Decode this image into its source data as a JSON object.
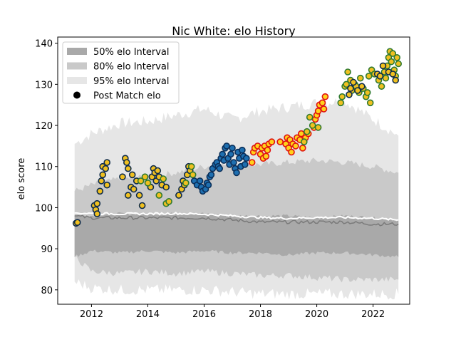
{
  "chart_data": {
    "type": "scatter",
    "title": "Nic White: elo History",
    "xlabel": "",
    "ylabel": "elo score",
    "xlim": [
      2010.8,
      2023.3
    ],
    "ylim": [
      76.5,
      141.5
    ],
    "xticks": [
      2012,
      2014,
      2016,
      2018,
      2020,
      2022
    ],
    "yticks": [
      80,
      90,
      100,
      110,
      120,
      130,
      140
    ],
    "grid": false,
    "legend_position": "top-left",
    "legend": [
      {
        "label": "50% elo Interval",
        "kind": "band50"
      },
      {
        "label": "80% elo Interval",
        "kind": "band80"
      },
      {
        "label": "95% elo Interval",
        "kind": "band95"
      },
      {
        "label": "Post Match elo",
        "kind": "marker"
      }
    ],
    "colors": {
      "band50": "#a9a9a9",
      "band80": "#c9c9c9",
      "band95": "#e6e6e6",
      "median_line": "#7a7a7a",
      "mean_line": "#ffffff",
      "marker_gold": "#f0c020",
      "marker_blue": "#1e6fb0",
      "marker_yellow": "#ffd21a",
      "edge_navy": "#0d2a4a",
      "edge_green": "#2f7a2f",
      "edge_red": "#e01010",
      "edge_blue": "#0a2f5a"
    },
    "bands": {
      "x": [
        2011.4,
        2012.0,
        2013.0,
        2014.0,
        2015.0,
        2016.0,
        2017.0,
        2018.0,
        2019.0,
        2020.0,
        2021.0,
        2022.0,
        2022.9
      ],
      "p95_hi": [
        115.5,
        118.0,
        120.5,
        121.0,
        122.5,
        124.0,
        121.5,
        123.5,
        124.5,
        125.5,
        126.0,
        121.5,
        117.5
      ],
      "p80_hi": [
        104.0,
        105.5,
        107.0,
        107.5,
        108.5,
        110.0,
        110.5,
        110.5,
        111.0,
        111.5,
        111.0,
        110.0,
        108.5
      ],
      "p50_hi": [
        98.0,
        98.0,
        98.5,
        98.5,
        98.5,
        98.5,
        98.0,
        98.0,
        98.0,
        97.5,
        98.0,
        97.5,
        97.0
      ],
      "median": [
        98.0,
        97.5,
        97.5,
        97.5,
        97.5,
        97.5,
        97.0,
        96.5,
        96.5,
        96.5,
        96.5,
        96.0,
        96.0
      ],
      "p50_lo": [
        88.0,
        89.5,
        89.0,
        89.5,
        89.0,
        89.5,
        89.0,
        89.0,
        88.5,
        89.0,
        89.0,
        88.5,
        88.0
      ],
      "p80_lo": [
        88.0,
        84.5,
        84.0,
        84.5,
        84.0,
        84.5,
        84.0,
        83.5,
        83.5,
        83.0,
        82.5,
        82.5,
        82.5
      ],
      "p95_lo": [
        82.0,
        80.5,
        80.0,
        80.0,
        80.0,
        80.0,
        79.5,
        79.0,
        79.0,
        79.0,
        79.0,
        79.0,
        79.0
      ],
      "mean": [
        98.7,
        98.6,
        98.5,
        98.5,
        98.6,
        98.4,
        98.0,
        97.6,
        97.4,
        97.6,
        97.6,
        97.4,
        97.0
      ]
    },
    "series": [
      {
        "group": "A",
        "edge": "navy",
        "fill": "gold",
        "points": [
          [
            2011.45,
            96.2
          ],
          [
            2011.5,
            96.4
          ],
          [
            2012.1,
            100.5
          ],
          [
            2012.15,
            99.5
          ],
          [
            2012.2,
            101.0
          ],
          [
            2012.2,
            98.5
          ],
          [
            2012.3,
            104.0
          ],
          [
            2012.35,
            106.5
          ],
          [
            2012.4,
            108.0
          ],
          [
            2012.4,
            110.0
          ],
          [
            2012.5,
            109.5
          ],
          [
            2012.55,
            111.0
          ],
          [
            2012.55,
            105.5
          ],
          [
            2013.1,
            107.5
          ],
          [
            2013.2,
            112.0
          ],
          [
            2013.25,
            111.0
          ],
          [
            2013.3,
            109.5
          ],
          [
            2013.3,
            103.0
          ],
          [
            2013.4,
            105.0
          ],
          [
            2013.45,
            108.0
          ],
          [
            2013.5,
            104.5
          ],
          [
            2013.6,
            106.5
          ],
          [
            2013.7,
            103.0
          ],
          [
            2013.8,
            100.5
          ],
          [
            2014.1,
            105.0
          ],
          [
            2014.15,
            107.5
          ],
          [
            2014.2,
            109.5
          ],
          [
            2014.25,
            108.5
          ],
          [
            2014.3,
            106.5
          ],
          [
            2014.35,
            109.0
          ],
          [
            2014.4,
            107.5
          ],
          [
            2014.5,
            105.5
          ],
          [
            2014.65,
            105.0
          ],
          [
            2015.1,
            103.0
          ],
          [
            2015.2,
            104.5
          ],
          [
            2015.25,
            106.5
          ],
          [
            2015.3,
            105.5
          ],
          [
            2015.4,
            108.0
          ],
          [
            2015.45,
            110.0
          ],
          [
            2015.5,
            109.0
          ]
        ]
      },
      {
        "group": "B",
        "edge": "green",
        "fill": "gold",
        "points": [
          [
            2013.75,
            106.5
          ],
          [
            2013.9,
            107.5
          ],
          [
            2014.0,
            106.0
          ],
          [
            2014.4,
            103.0
          ],
          [
            2014.55,
            107.0
          ],
          [
            2014.65,
            101.0
          ],
          [
            2014.75,
            101.5
          ],
          [
            2015.35,
            106.0
          ],
          [
            2015.55,
            110.0
          ],
          [
            2015.6,
            108.0
          ]
        ]
      },
      {
        "group": "C",
        "edge": "blue",
        "fill": "blue",
        "points": [
          [
            2015.65,
            106.5
          ],
          [
            2015.75,
            105.5
          ],
          [
            2015.85,
            106.5
          ],
          [
            2015.9,
            105.0
          ],
          [
            2015.95,
            104.0
          ],
          [
            2016.05,
            104.5
          ],
          [
            2016.1,
            106.0
          ],
          [
            2016.15,
            105.5
          ],
          [
            2016.2,
            107.5
          ],
          [
            2016.25,
            108.0
          ],
          [
            2016.3,
            109.5
          ],
          [
            2016.4,
            110.5
          ],
          [
            2016.45,
            111.0
          ],
          [
            2016.5,
            110.0
          ],
          [
            2016.55,
            109.5
          ],
          [
            2016.6,
            112.0
          ],
          [
            2016.65,
            113.0
          ],
          [
            2016.7,
            111.5
          ],
          [
            2016.75,
            114.5
          ],
          [
            2016.8,
            115.0
          ],
          [
            2016.85,
            112.0
          ],
          [
            2016.9,
            110.5
          ],
          [
            2016.95,
            113.0
          ],
          [
            2017.0,
            114.5
          ],
          [
            2017.05,
            111.0
          ],
          [
            2017.1,
            109.5
          ],
          [
            2017.15,
            108.5
          ],
          [
            2017.2,
            113.5
          ],
          [
            2017.25,
            112.0
          ],
          [
            2017.3,
            110.0
          ],
          [
            2017.35,
            114.0
          ],
          [
            2017.4,
            112.5
          ],
          [
            2017.45,
            110.5
          ],
          [
            2017.5,
            112.0
          ]
        ]
      },
      {
        "group": "D",
        "edge": "red",
        "fill": "yellow",
        "points": [
          [
            2017.7,
            111.0
          ],
          [
            2017.75,
            113.5
          ],
          [
            2017.8,
            114.5
          ],
          [
            2017.9,
            115.0
          ],
          [
            2018.0,
            113.0
          ],
          [
            2018.05,
            114.5
          ],
          [
            2018.1,
            112.0
          ],
          [
            2018.15,
            115.0
          ],
          [
            2018.2,
            112.5
          ],
          [
            2018.25,
            114.0
          ],
          [
            2018.3,
            115.5
          ],
          [
            2018.4,
            116.0
          ],
          [
            2018.7,
            116.0
          ],
          [
            2018.9,
            115.5
          ],
          [
            2018.95,
            117.0
          ],
          [
            2019.0,
            114.5
          ],
          [
            2019.05,
            116.5
          ],
          [
            2019.1,
            113.5
          ],
          [
            2019.15,
            115.5
          ],
          [
            2019.25,
            115.0
          ],
          [
            2019.3,
            117.0
          ],
          [
            2019.4,
            116.5
          ],
          [
            2019.45,
            118.0
          ],
          [
            2019.5,
            114.5
          ],
          [
            2019.6,
            117.0
          ],
          [
            2019.7,
            118.0
          ],
          [
            2019.9,
            119.5
          ],
          [
            2019.95,
            121.5
          ],
          [
            2020.0,
            122.5
          ],
          [
            2020.05,
            123.5
          ],
          [
            2020.1,
            125.0
          ],
          [
            2020.2,
            125.5
          ],
          [
            2020.3,
            127.0
          ],
          [
            2020.25,
            124.0
          ]
        ]
      },
      {
        "group": "E",
        "edge": "green",
        "fill": "gold",
        "points": [
          [
            2019.55,
            116.0
          ],
          [
            2019.65,
            118.5
          ],
          [
            2019.75,
            122.0
          ],
          [
            2019.85,
            120.0
          ],
          [
            2020.05,
            119.5
          ],
          [
            2020.85,
            125.5
          ],
          [
            2020.9,
            127.0
          ],
          [
            2021.0,
            129.5
          ],
          [
            2021.05,
            130.0
          ],
          [
            2021.1,
            133.0
          ],
          [
            2021.2,
            131.0
          ],
          [
            2021.25,
            128.5
          ],
          [
            2021.35,
            130.0
          ],
          [
            2021.4,
            129.5
          ],
          [
            2021.5,
            128.0
          ],
          [
            2021.55,
            131.5
          ],
          [
            2021.65,
            129.0
          ],
          [
            2021.75,
            127.0
          ],
          [
            2021.8,
            128.0
          ],
          [
            2021.85,
            132.0
          ],
          [
            2021.9,
            125.5
          ],
          [
            2021.95,
            133.5
          ],
          [
            2022.05,
            132.5
          ],
          [
            2022.2,
            131.0
          ],
          [
            2022.3,
            129.5
          ],
          [
            2022.4,
            133.0
          ],
          [
            2022.45,
            131.5
          ],
          [
            2022.5,
            134.5
          ],
          [
            2022.55,
            136.5
          ],
          [
            2022.6,
            138.0
          ],
          [
            2022.65,
            135.5
          ],
          [
            2022.7,
            137.5
          ],
          [
            2022.75,
            133.5
          ],
          [
            2022.8,
            132.0
          ],
          [
            2022.85,
            136.5
          ],
          [
            2022.9,
            135.0
          ]
        ]
      },
      {
        "group": "F",
        "edge": "navy",
        "fill": "gold",
        "points": [
          [
            2021.15,
            127.5
          ],
          [
            2021.2,
            129.0
          ],
          [
            2021.3,
            130.5
          ],
          [
            2021.45,
            128.5
          ],
          [
            2021.6,
            129.5
          ],
          [
            2022.15,
            132.5
          ],
          [
            2022.25,
            132.0
          ],
          [
            2022.35,
            134.5
          ],
          [
            2022.55,
            133.0
          ],
          [
            2022.7,
            132.5
          ],
          [
            2022.8,
            131.0
          ]
        ]
      }
    ]
  }
}
